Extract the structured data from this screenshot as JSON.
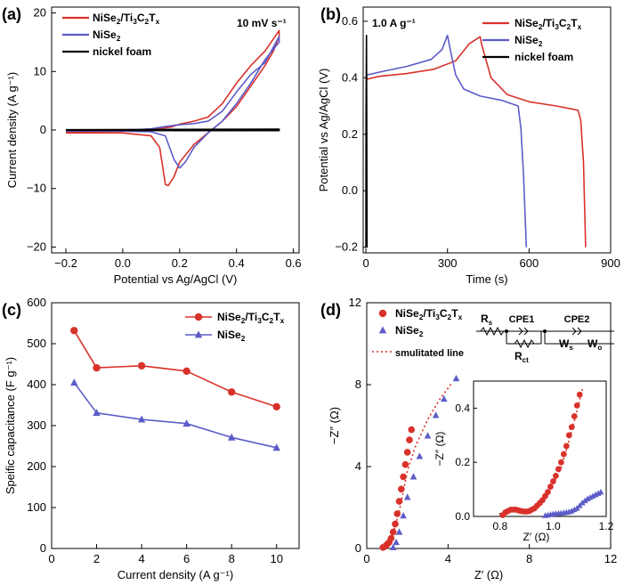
{
  "colors": {
    "red": "#d9312b",
    "blue": "#5c5cc8",
    "black": "#000000",
    "axis": "#000000"
  },
  "chart_data": [
    {
      "panel": "(a)",
      "type": "line",
      "xlabel": "Potential vs Ag/AgCl (V)",
      "ylabel": "Current density (A g⁻¹)",
      "annotation": "10 mV s⁻¹",
      "xlim": [
        -0.25,
        0.62
      ],
      "ylim": [
        -21,
        21
      ],
      "xticks": [
        -0.2,
        0.0,
        0.2,
        0.4,
        0.6
      ],
      "xtick_labels": [
        "−0.2",
        "0.0",
        "0.2",
        "0.4",
        "0.6"
      ],
      "yticks": [
        -20,
        -10,
        0,
        10,
        20
      ],
      "ytick_labels": [
        "−20",
        "−10",
        "0",
        "10",
        "20"
      ],
      "legend_position": "top-left",
      "series": [
        {
          "name": "NiSe₂/Ti₃C₂Tₓ",
          "color": "red",
          "x": [
            -0.2,
            0.0,
            0.1,
            0.15,
            0.17,
            0.2,
            0.25,
            0.3,
            0.35,
            0.4,
            0.45,
            0.5,
            0.55,
            0.55,
            0.53,
            0.5,
            0.45,
            0.4,
            0.35,
            0.3,
            0.25,
            0.2,
            0.18,
            0.16,
            0.15,
            0.13,
            0.1,
            0.0,
            -0.2
          ],
          "y": [
            -0.3,
            -0.2,
            0.1,
            0.4,
            0.5,
            1.0,
            1.5,
            2.2,
            4.5,
            8.0,
            11.0,
            13.5,
            17.0,
            16.0,
            13.5,
            11.0,
            7.5,
            4.0,
            1.5,
            -0.5,
            -2.5,
            -5.5,
            -8.0,
            -9.5,
            -9.3,
            -3.0,
            -1.0,
            -0.5,
            -0.5
          ]
        },
        {
          "name": "NiSe₂",
          "color": "blue",
          "x": [
            -0.2,
            0.0,
            0.1,
            0.15,
            0.2,
            0.25,
            0.3,
            0.35,
            0.4,
            0.45,
            0.5,
            0.55,
            0.55,
            0.5,
            0.45,
            0.4,
            0.35,
            0.3,
            0.25,
            0.22,
            0.2,
            0.18,
            0.15,
            0.1,
            0.0,
            -0.2
          ],
          "y": [
            -0.2,
            -0.1,
            0.2,
            0.6,
            0.9,
            1.1,
            1.5,
            3.2,
            6.5,
            9.5,
            11.5,
            16.0,
            15.0,
            12.0,
            8.0,
            4.5,
            1.5,
            -0.5,
            -3.0,
            -5.5,
            -6.5,
            -5.0,
            -1.0,
            -0.3,
            -0.2,
            -0.2
          ]
        },
        {
          "name": "nickel foam",
          "color": "black",
          "x": [
            -0.2,
            0.2,
            0.55,
            0.55,
            0.2,
            -0.2
          ],
          "y": [
            0.05,
            0.1,
            0.15,
            -0.1,
            -0.1,
            -0.05
          ]
        }
      ]
    },
    {
      "panel": "(b)",
      "type": "line",
      "xlabel": "Time (s)",
      "ylabel": "Potential vs Ag/AgCl (V)",
      "annotation": "1.0 A g⁻¹",
      "xlim": [
        -10,
        900
      ],
      "ylim": [
        -0.22,
        0.65
      ],
      "xticks": [
        0,
        300,
        600,
        900
      ],
      "xtick_labels": [
        "0",
        "300",
        "600",
        "900"
      ],
      "yticks": [
        -0.2,
        0.0,
        0.2,
        0.4,
        0.6
      ],
      "ytick_labels": [
        "−0.2",
        "0.0",
        "0.2",
        "0.4",
        "0.6"
      ],
      "legend_position": "top-right",
      "series": [
        {
          "name": "NiSe₂/Ti₃C₂Tₓ",
          "color": "red",
          "x": [
            0,
            5,
            50,
            150,
            250,
            330,
            380,
            420,
            425,
            460,
            520,
            600,
            700,
            780,
            790,
            800,
            808
          ],
          "y": [
            0.39,
            0.395,
            0.405,
            0.415,
            0.43,
            0.46,
            0.52,
            0.545,
            0.52,
            0.4,
            0.34,
            0.315,
            0.3,
            0.285,
            0.25,
            0.1,
            -0.2
          ]
        },
        {
          "name": "NiSe₂",
          "color": "blue",
          "x": [
            0,
            5,
            50,
            150,
            240,
            280,
            300,
            310,
            330,
            360,
            420,
            500,
            560,
            570,
            580,
            590
          ],
          "y": [
            0.4,
            0.41,
            0.42,
            0.44,
            0.465,
            0.5,
            0.55,
            0.5,
            0.41,
            0.36,
            0.335,
            0.32,
            0.3,
            0.22,
            0.05,
            -0.2
          ]
        },
        {
          "name": "nickel foam",
          "color": "black",
          "x": [
            0,
            0.5,
            2,
            3,
            4
          ],
          "y": [
            -0.2,
            0.25,
            0.55,
            0.25,
            -0.2
          ]
        }
      ]
    },
    {
      "panel": "(c)",
      "type": "line",
      "xlabel": "Current density (A g⁻¹)",
      "ylabel": "Speific capacitance (F g⁻¹)",
      "xlim": [
        0,
        11
      ],
      "ylim": [
        0,
        600
      ],
      "xticks": [
        0,
        2,
        4,
        6,
        8,
        10
      ],
      "xtick_labels": [
        "0",
        "2",
        "4",
        "6",
        "8",
        "10"
      ],
      "yticks": [
        0,
        100,
        200,
        300,
        400,
        500,
        600
      ],
      "ytick_labels": [
        "0",
        "100",
        "200",
        "300",
        "400",
        "500",
        "600"
      ],
      "legend_position": "top-right",
      "series": [
        {
          "name": "NiSe₂/Ti₃C₂Tₓ",
          "color": "red",
          "marker": "circle",
          "x": [
            1,
            2,
            4,
            6,
            8,
            10
          ],
          "y": [
            532,
            441,
            446,
            433,
            382,
            346
          ]
        },
        {
          "name": "NiSe₂",
          "color": "blue",
          "marker": "triangle",
          "x": [
            1,
            2,
            4,
            6,
            8,
            10
          ],
          "y": [
            405,
            331,
            315,
            305,
            271,
            246
          ]
        }
      ]
    },
    {
      "panel": "(d)",
      "type": "scatter",
      "xlabel": "Z′ (Ω)",
      "ylabel": "−Z″ (Ω)",
      "xlim": [
        0,
        12
      ],
      "ylim": [
        0,
        12
      ],
      "xticks": [
        0,
        4,
        8,
        12
      ],
      "xtick_labels": [
        "0",
        "4",
        "8",
        "12"
      ],
      "yticks": [
        0,
        4,
        8,
        12
      ],
      "ytick_labels": [
        "0",
        "4",
        "8",
        "12"
      ],
      "legend_position": "top-left",
      "fit_label": "smulitated line",
      "circuit_labels": {
        "rs": "R",
        "rs_sub": "s",
        "cpe1": "CPE1",
        "cpe2": "CPE2",
        "rct": "R",
        "rct_sub": "ct",
        "ws": "W",
        "ws_sub": "s",
        "wo": "W",
        "wo_sub": "o"
      },
      "series": [
        {
          "name": "NiSe₂/Ti₃C₂Tₓ",
          "color": "red",
          "marker": "circle",
          "x": [
            0.8,
            0.9,
            1.0,
            1.1,
            1.2,
            1.3,
            1.4,
            1.5,
            1.6,
            1.7,
            1.8,
            1.9,
            2.0,
            2.1,
            2.2
          ],
          "y": [
            0.05,
            0.1,
            0.2,
            0.3,
            0.5,
            0.8,
            1.2,
            1.7,
            2.3,
            2.9,
            3.5,
            4.1,
            4.7,
            5.3,
            5.8
          ]
        },
        {
          "name": "NiSe₂",
          "color": "blue",
          "marker": "triangle",
          "x": [
            1.3,
            1.45,
            1.6,
            1.8,
            2.0,
            2.3,
            2.6,
            3.0,
            3.4,
            3.8,
            4.4
          ],
          "y": [
            0.05,
            0.3,
            0.8,
            1.6,
            2.5,
            3.5,
            4.5,
            5.5,
            6.5,
            7.3,
            8.3
          ]
        },
        {
          "name": "smulitated line",
          "color": "red",
          "line": "dotted",
          "x": [
            0.8,
            1.2,
            1.6,
            2.0,
            2.4,
            3.0,
            3.6,
            4.2
          ],
          "y": [
            0.05,
            0.4,
            1.8,
            3.8,
            5.0,
            6.3,
            7.3,
            8.1
          ]
        }
      ],
      "inset": {
        "xlabel": "Z′ (Ω)",
        "ylabel": "−Z″ (Ω)",
        "xlim": [
          0.7,
          1.2
        ],
        "ylim": [
          0,
          0.5
        ],
        "xticks": [
          0.8,
          1.0,
          1.2
        ],
        "xtick_labels": [
          "0.8",
          "1.0",
          "1.2"
        ],
        "yticks": [
          0.0,
          0.2,
          0.4
        ],
        "ytick_labels": [
          "0.0",
          "0.2",
          "0.4"
        ],
        "series": [
          {
            "name": "NiSe₂/Ti₃C₂Tₓ",
            "color": "red",
            "marker": "circle",
            "x": [
              0.81,
              0.82,
              0.83,
              0.84,
              0.85,
              0.86,
              0.87,
              0.88,
              0.89,
              0.9,
              0.91,
              0.92,
              0.93,
              0.94,
              0.95,
              0.96,
              0.97,
              0.98,
              0.99,
              1.0,
              1.01,
              1.02,
              1.03,
              1.04,
              1.05,
              1.06,
              1.07,
              1.08,
              1.09,
              1.1
            ],
            "y": [
              0.005,
              0.015,
              0.02,
              0.025,
              0.025,
              0.025,
              0.022,
              0.02,
              0.018,
              0.018,
              0.02,
              0.025,
              0.03,
              0.04,
              0.05,
              0.06,
              0.075,
              0.09,
              0.11,
              0.13,
              0.15,
              0.175,
              0.2,
              0.23,
              0.26,
              0.3,
              0.33,
              0.37,
              0.41,
              0.45
            ]
          },
          {
            "name": "NiSe₂",
            "color": "blue",
            "marker": "triangle",
            "x": [
              0.97,
              0.98,
              0.99,
              1.0,
              1.01,
              1.02,
              1.03,
              1.04,
              1.05,
              1.06,
              1.07,
              1.08,
              1.09,
              1.1,
              1.11,
              1.12,
              1.13,
              1.14,
              1.15,
              1.16,
              1.17,
              1.18
            ],
            "y": [
              0.003,
              0.005,
              0.007,
              0.009,
              0.01,
              0.011,
              0.012,
              0.013,
              0.015,
              0.017,
              0.02,
              0.025,
              0.03,
              0.04,
              0.05,
              0.058,
              0.065,
              0.07,
              0.075,
              0.08,
              0.085,
              0.09
            ]
          },
          {
            "name": "smulitated line",
            "color": "red",
            "line": "dotted",
            "x": [
              0.8,
              0.85,
              0.9,
              0.95,
              1.0,
              1.03,
              1.06,
              1.09,
              1.11
            ],
            "y": [
              0.0,
              0.025,
              0.02,
              0.05,
              0.12,
              0.18,
              0.28,
              0.39,
              0.47
            ]
          }
        ]
      }
    }
  ]
}
